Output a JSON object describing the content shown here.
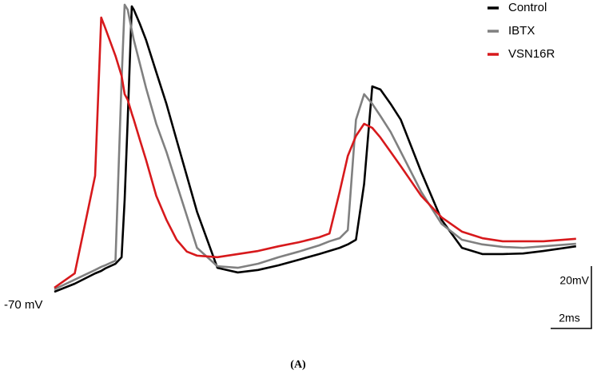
{
  "chart_data": {
    "type": "line",
    "x": [
      0,
      1,
      2,
      2.3,
      2.5,
      3,
      3.3,
      3.45,
      3.6,
      3.8,
      3.9,
      4.2,
      4.5,
      5,
      5.5,
      6,
      6.5,
      7,
      8,
      9,
      10,
      11,
      12,
      13,
      13.5,
      14,
      14.4,
      14.8,
      15.2,
      15.6,
      16,
      16.5,
      17,
      18,
      19,
      20,
      21,
      22,
      23,
      24,
      25.6
    ],
    "series": [
      {
        "name": "Control",
        "color": "#000000",
        "values": [
          -70.8,
          -68.2,
          -64.9,
          -64.1,
          -63.3,
          -61.8,
          -59.7,
          -41.3,
          -15.6,
          20.8,
          19.7,
          15.1,
          10,
          -0.3,
          -10.5,
          -22.1,
          -33.6,
          -45.1,
          -63.1,
          -64.6,
          -63.8,
          -62.3,
          -60.5,
          -58.7,
          -57.7,
          -56.7,
          -55.6,
          -54.1,
          -36.2,
          -4.9,
          -5.9,
          -10.5,
          -15.6,
          -32.3,
          -47.7,
          -56.7,
          -58.7,
          -58.7,
          -58.5,
          -57.7,
          -56.2
        ]
      },
      {
        "name": "IBTX",
        "color": "#808080",
        "values": [
          -70,
          -66.9,
          -63.8,
          -62.8,
          -62.3,
          -60.8,
          -2.8,
          21.3,
          19.7,
          13.1,
          10,
          2.3,
          -5.4,
          -16.9,
          -25.9,
          -36.2,
          -46.4,
          -56.7,
          -62.6,
          -63.1,
          -61.8,
          -59.7,
          -57.9,
          -55.9,
          -54.6,
          -53.6,
          -51,
          -15.6,
          -7.4,
          -10.5,
          -14.4,
          -19.5,
          -25.9,
          -38.7,
          -49,
          -54.1,
          -55.6,
          -56.4,
          -56.7,
          -56.2,
          -55.4
        ]
      },
      {
        "name": "VSN16R",
        "color": "#d7191c",
        "values": [
          -69.5,
          -64.9,
          -33.6,
          17.2,
          13.8,
          4.9,
          -1.5,
          -7.4,
          -9.2,
          -13.6,
          -15.6,
          -22.1,
          -28.5,
          -40,
          -47.7,
          -54.1,
          -57.9,
          -59.2,
          -59.7,
          -58.7,
          -57.7,
          -56.2,
          -54.9,
          -53.3,
          -52.1,
          -38.7,
          -27.2,
          -20.8,
          -16.9,
          -18.2,
          -21.3,
          -25.9,
          -30.5,
          -40,
          -46.9,
          -51.5,
          -53.6,
          -54.6,
          -54.6,
          -54.6,
          -53.8
        ]
      }
    ],
    "xlim": [
      0,
      26
    ],
    "ylim": [
      -72,
      22
    ],
    "baseline_label": {
      "value": -70,
      "label": "-70 mV"
    },
    "scale_bars": {
      "y": {
        "value": 20,
        "label": "20mV"
      },
      "x": {
        "value": 2,
        "label": "2ms"
      }
    },
    "legend": "upper right",
    "caption": "(A)"
  }
}
